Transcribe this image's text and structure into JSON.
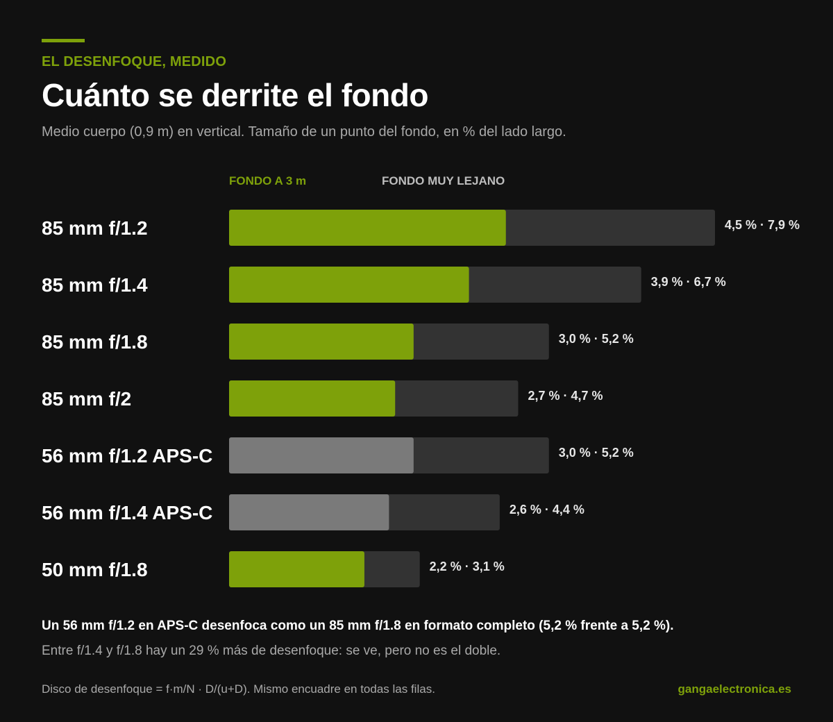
{
  "header": {
    "kicker": "EL DESENFOQUE, MEDIDO",
    "title": "Cuánto se derrite el fondo",
    "subtitle": "Medio cuerpo (0,9 m) en vertical. Tamaño de un punto del fondo, en % del lado largo."
  },
  "legend": {
    "near": "FONDO A 3 m",
    "far": "FONDO MUY LEJANO"
  },
  "colors": {
    "full_frame": "#7ea10a",
    "aps_c": "#7a7a7a",
    "far_track": "#333333",
    "background": "#111111"
  },
  "chart_data": {
    "type": "bar",
    "orientation": "horizontal",
    "categories": [
      "85 mm f/1.2",
      "85 mm f/1.4",
      "85 mm f/1.8",
      "85 mm f/2",
      "56 mm f/1.2 APS-C",
      "56 mm f/1.4 APS-C",
      "50 mm f/1.8"
    ],
    "series": [
      {
        "name": "FONDO A 3 m",
        "values": [
          4.5,
          3.9,
          3.0,
          2.7,
          3.0,
          2.6,
          2.2
        ]
      },
      {
        "name": "FONDO MUY LEJANO",
        "values": [
          7.9,
          6.7,
          5.2,
          4.7,
          5.2,
          4.4,
          3.1
        ]
      }
    ],
    "value_labels": [
      "4,5 % · 7,9 %",
      "3,9 % · 6,7 %",
      "3,0 % · 5,2 %",
      "2,7 % · 4,7 %",
      "3,0 % · 5,2 %",
      "2,6 % · 4,4 %",
      "2,2 % · 3,1 %"
    ],
    "aps_c": [
      false,
      false,
      false,
      false,
      true,
      true,
      false
    ],
    "xlim": [
      0,
      7.9
    ],
    "grid": false
  },
  "notes": {
    "strong": "Un 56 mm f/1.2 en APS-C desenfoca como un 85 mm f/1.8 en formato completo (5,2 % frente a 5,2 %).",
    "soft": "Entre f/1.4 y f/1.8 hay un 29 % más de desenfoque: se ve, pero no es el doble."
  },
  "footer": {
    "formula": "Disco de desenfoque = f·m/N · D/(u+D). Mismo encuadre en todas las filas.",
    "brand": "gangaelectronica.es"
  }
}
